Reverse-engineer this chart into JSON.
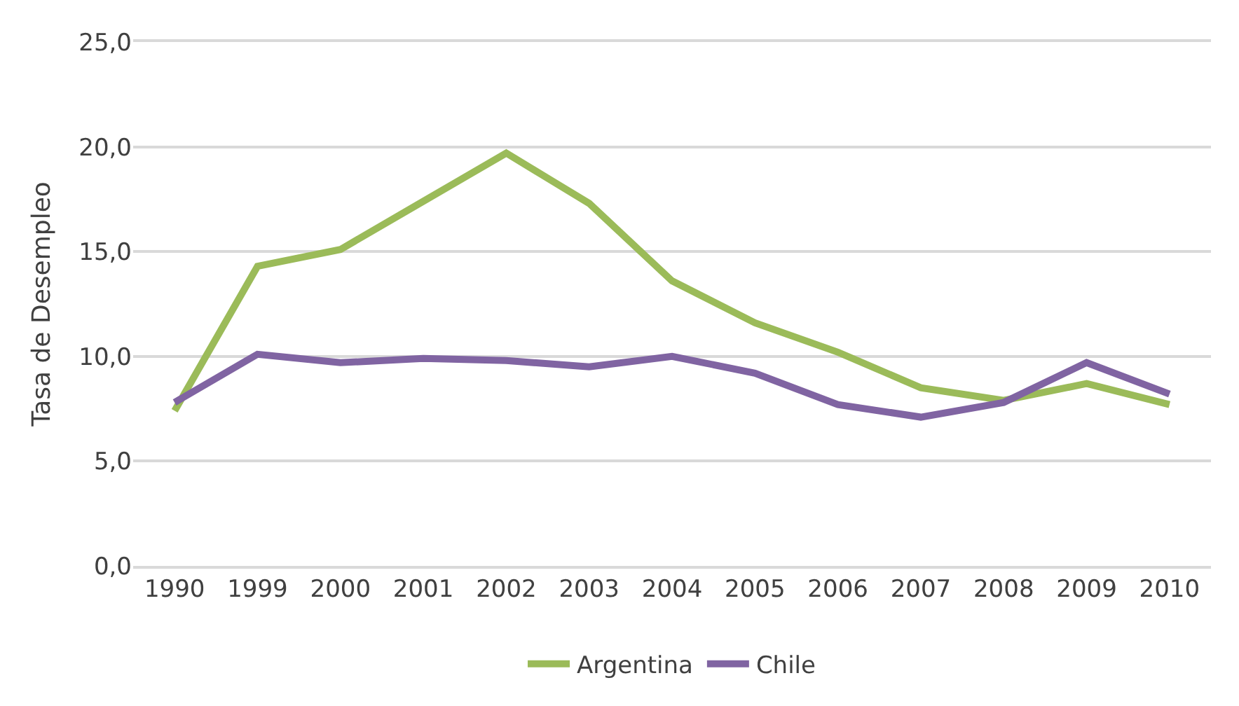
{
  "chart_data": {
    "type": "line",
    "ylabel": "Tasa de Desempleo",
    "categories": [
      "1990",
      "1999",
      "2000",
      "2001",
      "2002",
      "2003",
      "2004",
      "2005",
      "2006",
      "2007",
      "2008",
      "2009",
      "2010"
    ],
    "series": [
      {
        "name": "Argentina",
        "color": "#9bbb59",
        "values": [
          7.4,
          14.3,
          15.1,
          17.4,
          19.7,
          17.3,
          13.6,
          11.6,
          10.2,
          8.5,
          7.9,
          8.7,
          7.7
        ]
      },
      {
        "name": "Chile",
        "color": "#8064a2",
        "values": [
          7.8,
          10.1,
          9.7,
          9.9,
          9.8,
          9.5,
          10.0,
          9.2,
          7.7,
          7.1,
          7.8,
          9.7,
          8.2
        ]
      }
    ],
    "ylim": [
      0,
      25
    ],
    "yticks": [
      {
        "value": 0,
        "label": "0,0"
      },
      {
        "value": 5,
        "label": "5,0"
      },
      {
        "value": 10,
        "label": "10,0"
      },
      {
        "value": 15,
        "label": "15,0"
      },
      {
        "value": 20,
        "label": "20,0"
      },
      {
        "value": 25,
        "label": "25,0"
      }
    ],
    "grid": "y",
    "legend": "bottom",
    "marker": "none",
    "line_style": "solid"
  }
}
